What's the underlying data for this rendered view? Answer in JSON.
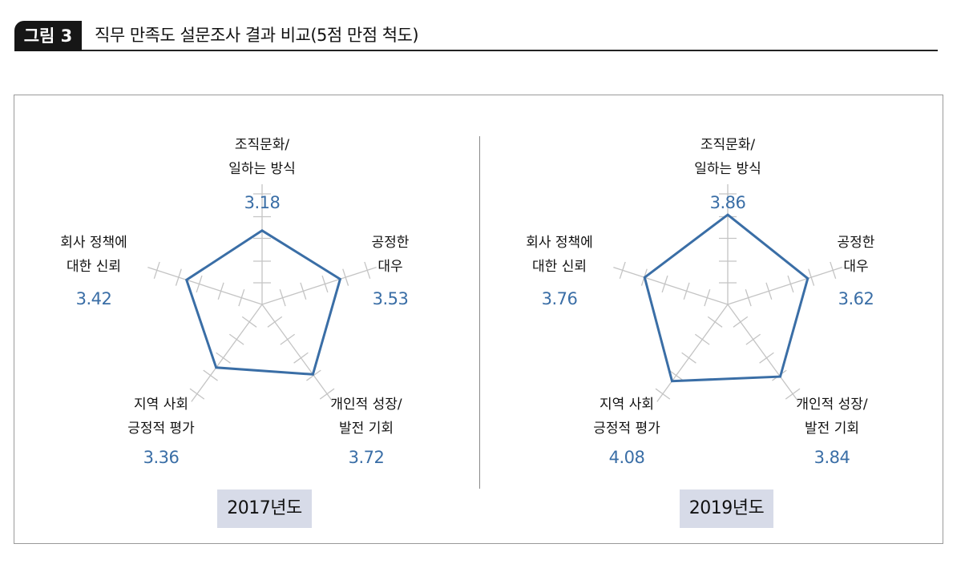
{
  "figure": {
    "badge": "그림 3",
    "title": "직무 만족도 설문조사 결과 비교(5점 만점 척도)"
  },
  "chart_data": [
    {
      "type": "radar",
      "year_label": "2017년도",
      "axes": [
        {
          "label_lines": [
            "조직문화/",
            "일하는 방식"
          ],
          "value": 3.18,
          "value_text": "3.18"
        },
        {
          "label_lines": [
            "공정한",
            "대우"
          ],
          "value": 3.53,
          "value_text": "3.53"
        },
        {
          "label_lines": [
            "개인적 성장/",
            "발전 기회"
          ],
          "value": 3.72,
          "value_text": "3.72"
        },
        {
          "label_lines": [
            "지역 사회",
            "긍정적 평가"
          ],
          "value": 3.36,
          "value_text": "3.36"
        },
        {
          "label_lines": [
            "회사 정책에",
            "대한 신뢰"
          ],
          "value": 3.42,
          "value_text": "3.42"
        }
      ],
      "scale_max": 5,
      "series_color": "#3a6ea6"
    },
    {
      "type": "radar",
      "year_label": "2019년도",
      "axes": [
        {
          "label_lines": [
            "조직문화/",
            "일하는 방식"
          ],
          "value": 3.86,
          "value_text": "3.86"
        },
        {
          "label_lines": [
            "공정한",
            "대우"
          ],
          "value": 3.62,
          "value_text": "3.62"
        },
        {
          "label_lines": [
            "개인적 성장/",
            "발전 기회"
          ],
          "value": 3.84,
          "value_text": "3.84"
        },
        {
          "label_lines": [
            "지역 사회",
            "긍정적 평가"
          ],
          "value": 4.08,
          "value_text": "4.08"
        },
        {
          "label_lines": [
            "회사 정책에",
            "대한 신뢰"
          ],
          "value": 3.76,
          "value_text": "3.76"
        }
      ],
      "scale_max": 5,
      "series_color": "#3a6ea6"
    }
  ]
}
